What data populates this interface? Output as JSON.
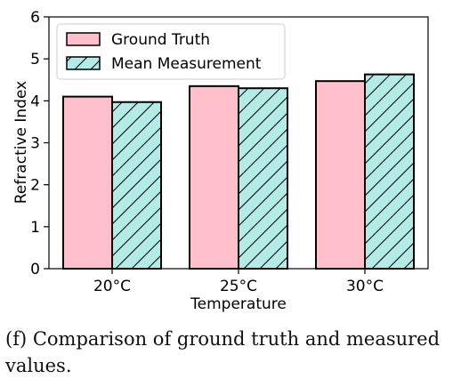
{
  "chart_data": {
    "type": "bar",
    "categories": [
      "20°C",
      "25°C",
      "30°C"
    ],
    "series": [
      {
        "name": "Ground Truth",
        "values": [
          4.1,
          4.35,
          4.47
        ],
        "color": "#ffc0cb",
        "hatch": "none"
      },
      {
        "name": "Mean Measurement",
        "values": [
          3.97,
          4.3,
          4.63
        ],
        "color": "#b3ebe6",
        "hatch": "diagonal"
      }
    ],
    "xlabel": "Temperature",
    "ylabel": "Refractive Index",
    "ylim": [
      0,
      6
    ],
    "yticks": [
      0,
      1,
      2,
      3,
      4,
      5,
      6
    ],
    "legend": "top-left",
    "grid": false
  },
  "caption": "(f)  Comparison of ground truth and measured values."
}
